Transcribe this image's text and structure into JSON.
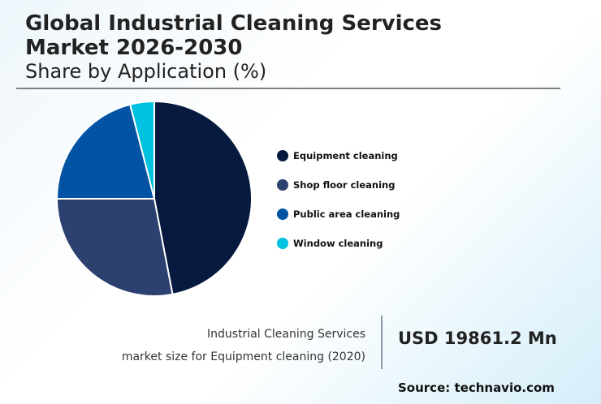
{
  "header": {
    "title_line1": "Global Industrial Cleaning Services",
    "title_line2": "Market 2026-2030",
    "subtitle": "Share by Application (%)"
  },
  "chart_data": {
    "type": "pie",
    "title": "Global Industrial Cleaning Services Market 2026-2030",
    "subtitle": "Share by Application (%)",
    "categories": [
      "Equipment cleaning",
      "Shop floor cleaning",
      "Public area cleaning",
      "Window cleaning"
    ],
    "values": [
      47,
      28,
      21,
      4
    ],
    "colors": [
      "#061a40",
      "#2c4170",
      "#0353a4",
      "#00c2e0"
    ],
    "start_angle": "12 o'clock, clockwise",
    "legend_position": "right"
  },
  "legend": {
    "items": [
      {
        "label": "Equipment cleaning",
        "color": "#061a40"
      },
      {
        "label": "Shop floor cleaning",
        "color": "#2c4170"
      },
      {
        "label": "Public area cleaning",
        "color": "#0353a4"
      },
      {
        "label": "Window cleaning",
        "color": "#00c2e0"
      }
    ]
  },
  "footer": {
    "desc_line1": "Industrial Cleaning Services",
    "desc_line2": "market size for Equipment cleaning (2020)",
    "value": "USD 19861.2 Mn",
    "source": "Source: technavio.com"
  }
}
